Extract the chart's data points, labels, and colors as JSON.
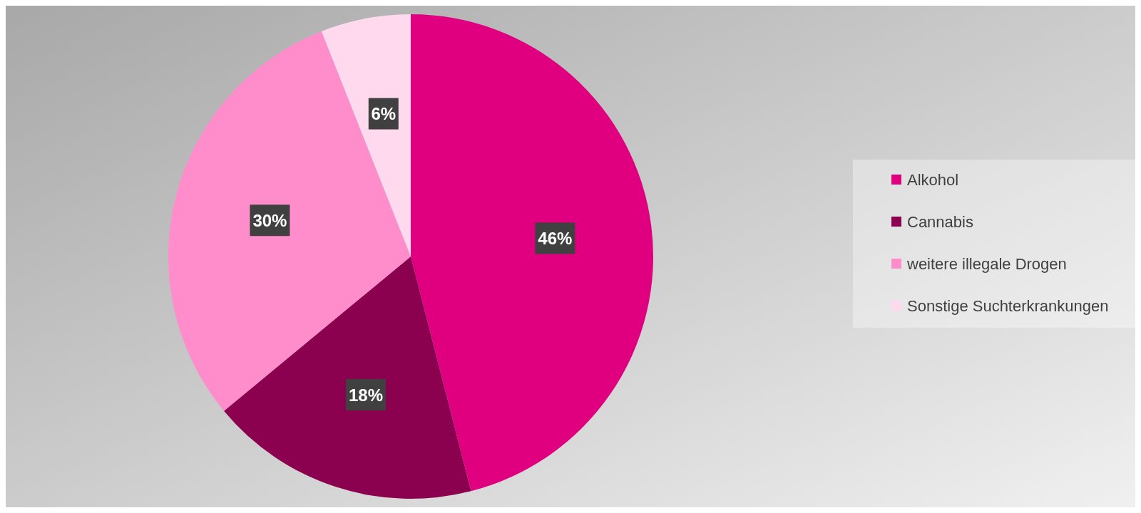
{
  "chart_data": {
    "type": "pie",
    "categories": [
      "Alkohol",
      "Cannabis",
      "weitere illegale Drogen",
      "Sonstige Suchterkrankungen"
    ],
    "values": [
      46,
      18,
      30,
      6
    ],
    "colors": [
      "#e0007f",
      "#8c0050",
      "#ff8ccb",
      "#ffd9ee"
    ],
    "value_labels": [
      "46%",
      "18%",
      "30%",
      "6%"
    ],
    "legend": "right"
  }
}
